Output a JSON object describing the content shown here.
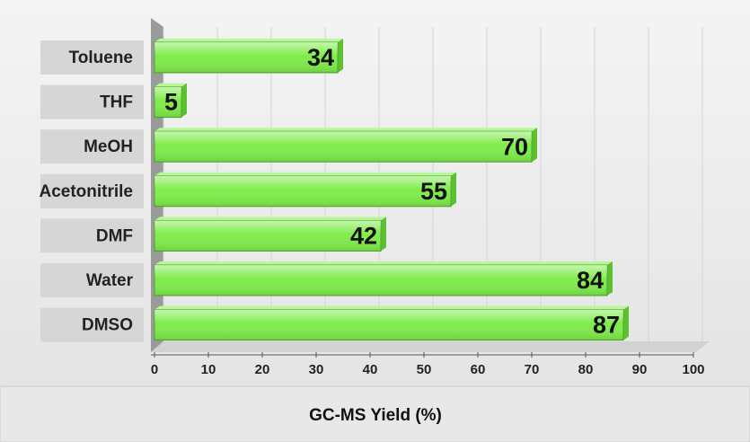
{
  "chart_data": {
    "type": "bar",
    "orientation": "horizontal",
    "x_label": "GC-MS Yield (%)",
    "categories": [
      "Toluene",
      "THF",
      "MeOH",
      "Acetonitrile",
      "DMF",
      "Water",
      "DMSO"
    ],
    "values": [
      34,
      5,
      70,
      55,
      42,
      84,
      87
    ],
    "color": "#80ec4c",
    "xlim": [
      0,
      100
    ],
    "xticks": [
      0,
      10,
      20,
      30,
      40,
      50,
      60,
      70,
      80,
      90,
      100
    ],
    "grid": true
  }
}
